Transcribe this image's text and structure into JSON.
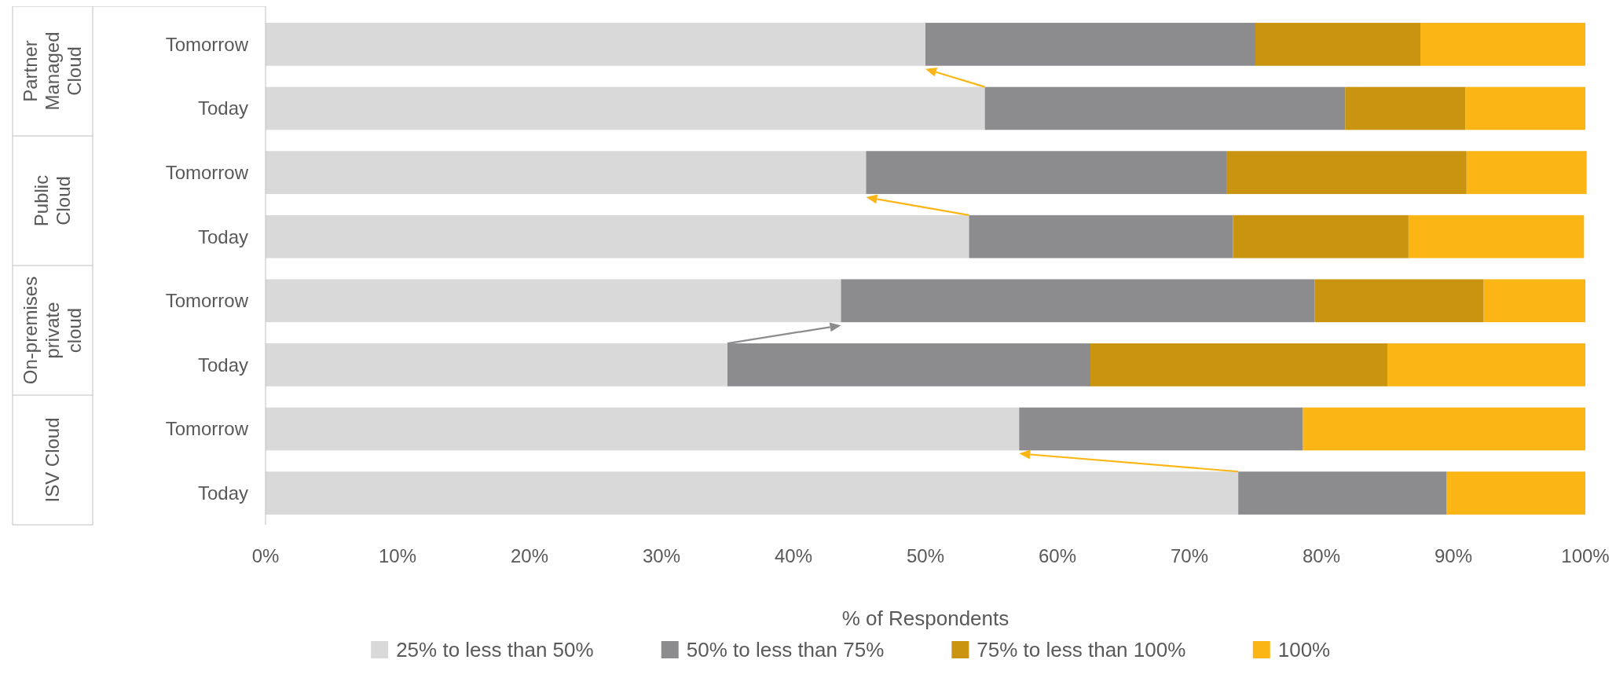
{
  "chart_data": {
    "type": "bar",
    "orientation": "horizontal",
    "stacked": true,
    "categories": [
      "Tomorrow",
      "Today",
      "Tomorrow",
      "Today",
      "Tomorrow",
      "Today",
      "Tomorrow",
      "Today"
    ],
    "annotations": [
      "Partner Managed Cloud",
      "Public Cloud",
      "On-premises private cloud",
      "ISV Cloud"
    ],
    "series": [
      {
        "name": "25% to less than 50%",
        "color": "#d9d9d9",
        "values": [
          50,
          54.5,
          45.5,
          53.3,
          43.6,
          35,
          57.1,
          73.7
        ]
      },
      {
        "name": "50% to less than 75%",
        "color": "#8c8c8f",
        "values": [
          25,
          27.3,
          27.3,
          20,
          35.9,
          27.5,
          21.5,
          15.8
        ]
      },
      {
        "name": "75% to less than 100%",
        "color": "#c9940f",
        "values": [
          12.5,
          9.1,
          18.2,
          13.3,
          12.8,
          22.5,
          0,
          0
        ]
      },
      {
        "name": "100%",
        "color": "#fbb616",
        "values": [
          12.5,
          9.1,
          9.1,
          13.3,
          7.7,
          15,
          21.4,
          10.5
        ]
      }
    ],
    "xlabel": "% of Respondents",
    "xlim": [
      0,
      100
    ],
    "xticks": [
      {
        "value": 0,
        "label": "0%"
      },
      {
        "value": 10,
        "label": "10%"
      },
      {
        "value": 20,
        "label": "20%"
      },
      {
        "value": 30,
        "label": "30%"
      },
      {
        "value": 40,
        "label": "40%"
      },
      {
        "value": 50,
        "label": "50%"
      },
      {
        "value": 60,
        "label": "60%"
      },
      {
        "value": 70,
        "label": "70%"
      },
      {
        "value": 80,
        "label": "80%"
      },
      {
        "value": 90,
        "label": "90%"
      },
      {
        "value": 100,
        "label": "100%"
      }
    ],
    "grid": false,
    "legend": "bottom"
  }
}
